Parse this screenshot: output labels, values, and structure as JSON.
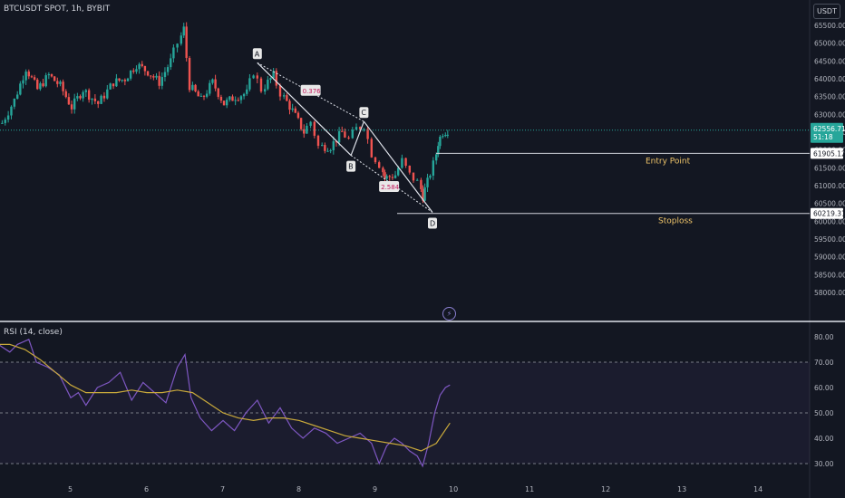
{
  "title": "BTCUSDT SPOT, 1h, BYBIT",
  "currency": "USDT",
  "indicator": "RSI (14, close)",
  "chart_data": [
    {
      "type": "candlestick",
      "title": "BTCUSDT SPOT, 1h, BYBIT",
      "x_ticks": [
        "5",
        "6",
        "7",
        "8",
        "9",
        "10",
        "11",
        "12",
        "13",
        "14"
      ],
      "y_ticks": [
        "65500.00",
        "65000.00",
        "64500.00",
        "64000.00",
        "63500.00",
        "63000.00",
        "62500.00",
        "62000.00",
        "61500.00",
        "61000.00",
        "60500.00",
        "60000.00",
        "59500.00",
        "59000.00",
        "58500.00",
        "58000.00"
      ],
      "ylim": [
        57900,
        65900
      ],
      "close_path": [
        [
          4.1,
          62600
        ],
        [
          4.3,
          63400
        ],
        [
          4.45,
          64300
        ],
        [
          4.6,
          63700
        ],
        [
          4.75,
          64100
        ],
        [
          4.9,
          63800
        ],
        [
          5.05,
          63200
        ],
        [
          5.2,
          63700
        ],
        [
          5.4,
          63300
        ],
        [
          5.6,
          63900
        ],
        [
          5.75,
          64000
        ],
        [
          5.9,
          64400
        ],
        [
          6.05,
          64200
        ],
        [
          6.2,
          63900
        ],
        [
          6.35,
          64500
        ],
        [
          6.45,
          65000
        ],
        [
          6.52,
          65400
        ],
        [
          6.6,
          63800
        ],
        [
          6.75,
          63400
        ],
        [
          6.9,
          63900
        ],
        [
          7.05,
          63300
        ],
        [
          7.2,
          63500
        ],
        [
          7.35,
          63600
        ],
        [
          7.45,
          64200
        ],
        [
          7.55,
          63700
        ],
        [
          7.7,
          64100
        ],
        [
          7.8,
          63600
        ],
        [
          7.95,
          63100
        ],
        [
          8.1,
          62500
        ],
        [
          8.2,
          62800
        ],
        [
          8.3,
          62100
        ],
        [
          8.45,
          62100
        ],
        [
          8.6,
          62500
        ],
        [
          8.7,
          62300
        ],
        [
          8.8,
          62600
        ],
        [
          8.9,
          62700
        ],
        [
          9.0,
          61900
        ],
        [
          9.1,
          61600
        ],
        [
          9.15,
          61200
        ],
        [
          9.3,
          61300
        ],
        [
          9.4,
          61700
        ],
        [
          9.5,
          61300
        ],
        [
          9.6,
          61100
        ],
        [
          9.65,
          60700
        ],
        [
          9.72,
          61100
        ],
        [
          9.8,
          61600
        ],
        [
          9.85,
          62200
        ],
        [
          9.92,
          62500
        ],
        [
          9.98,
          62556.71
        ]
      ],
      "current_price": "62556.71",
      "countdown": "51:18",
      "levels": [
        {
          "label": "Entry Point",
          "price": "61905.12",
          "value": 61905.12
        },
        {
          "label": "Stoploss",
          "price": "60219.31",
          "value": 60219.31
        }
      ],
      "pattern_points": [
        {
          "label": "A",
          "x": 7.45,
          "y": 64450
        },
        {
          "label": "B",
          "x": 8.68,
          "y": 61850
        },
        {
          "label": "C",
          "x": 8.85,
          "y": 62800
        },
        {
          "label": "D",
          "x": 9.75,
          "y": 60250
        }
      ],
      "ratios": [
        {
          "label": "0.376",
          "x": 8.15,
          "y": 63650
        },
        {
          "label": "2.584",
          "x": 9.18,
          "y": 60950
        }
      ]
    },
    {
      "type": "line",
      "title": "RSI (14, close)",
      "y_ticks": [
        "80.00",
        "70.00",
        "60.00",
        "50.00",
        "40.00",
        "30.00"
      ],
      "ylim": [
        27.5,
        81.5
      ],
      "bands": [
        70,
        50,
        30
      ],
      "series": [
        {
          "color": "#7e57c2",
          "points": [
            [
              4.0,
              78
            ],
            [
              4.1,
              76
            ],
            [
              4.2,
              74
            ],
            [
              4.3,
              77
            ],
            [
              4.45,
              79
            ],
            [
              4.55,
              70
            ],
            [
              4.7,
              68
            ],
            [
              4.85,
              65
            ],
            [
              5.0,
              56
            ],
            [
              5.1,
              58
            ],
            [
              5.2,
              53
            ],
            [
              5.35,
              60
            ],
            [
              5.5,
              62
            ],
            [
              5.65,
              66
            ],
            [
              5.8,
              55
            ],
            [
              5.95,
              62
            ],
            [
              6.1,
              58
            ],
            [
              6.25,
              54
            ],
            [
              6.4,
              68
            ],
            [
              6.5,
              73
            ],
            [
              6.58,
              56
            ],
            [
              6.7,
              48
            ],
            [
              6.85,
              43
            ],
            [
              7.0,
              47
            ],
            [
              7.15,
              43
            ],
            [
              7.3,
              50
            ],
            [
              7.45,
              55
            ],
            [
              7.6,
              46
            ],
            [
              7.75,
              52
            ],
            [
              7.9,
              44
            ],
            [
              8.05,
              40
            ],
            [
              8.2,
              44
            ],
            [
              8.35,
              42
            ],
            [
              8.5,
              38
            ],
            [
              8.65,
              40
            ],
            [
              8.8,
              42
            ],
            [
              8.95,
              38
            ],
            [
              9.05,
              30
            ],
            [
              9.15,
              37
            ],
            [
              9.25,
              40
            ],
            [
              9.35,
              38
            ],
            [
              9.45,
              35
            ],
            [
              9.55,
              33
            ],
            [
              9.62,
              29
            ],
            [
              9.7,
              38
            ],
            [
              9.78,
              50
            ],
            [
              9.85,
              57
            ],
            [
              9.92,
              60
            ],
            [
              9.98,
              61
            ]
          ]
        },
        {
          "color": "#c9a93b",
          "points": [
            [
              4.0,
              77
            ],
            [
              4.2,
              77
            ],
            [
              4.4,
              75
            ],
            [
              4.6,
              71
            ],
            [
              4.8,
              66
            ],
            [
              5.0,
              61
            ],
            [
              5.2,
              58
            ],
            [
              5.4,
              58
            ],
            [
              5.6,
              58
            ],
            [
              5.8,
              59
            ],
            [
              6.0,
              58
            ],
            [
              6.2,
              58
            ],
            [
              6.4,
              59
            ],
            [
              6.6,
              58
            ],
            [
              6.8,
              54
            ],
            [
              7.0,
              50
            ],
            [
              7.2,
              48
            ],
            [
              7.4,
              47
            ],
            [
              7.6,
              48
            ],
            [
              7.8,
              48
            ],
            [
              8.0,
              47
            ],
            [
              8.2,
              45
            ],
            [
              8.4,
              43
            ],
            [
              8.6,
              41
            ],
            [
              8.8,
              40
            ],
            [
              9.0,
              39
            ],
            [
              9.2,
              38
            ],
            [
              9.4,
              37
            ],
            [
              9.6,
              35
            ],
            [
              9.8,
              38
            ],
            [
              9.98,
              46
            ]
          ]
        }
      ]
    }
  ]
}
